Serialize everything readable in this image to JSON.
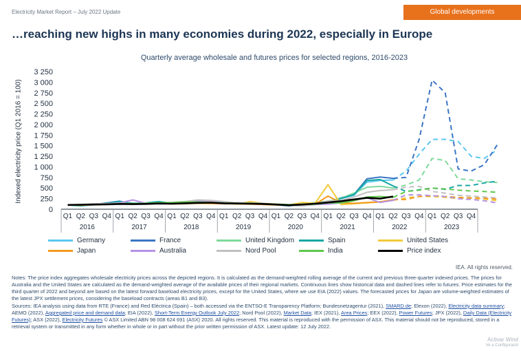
{
  "header": {
    "report": "Electricity Market Report – July 2022 Update",
    "tag": "Global developments"
  },
  "page_title": "…reaching new highs in many economies during 2022, especially in Europe",
  "chart_data": {
    "type": "line",
    "title": "Quarterly average wholesale and futures prices for selected regions, 2016-2023",
    "xlabel": "",
    "ylabel": "Indexed electricity price (Q1 2016 = 100)",
    "ylim": [
      0,
      3250
    ],
    "yticks": [
      0,
      250,
      500,
      750,
      1000,
      1250,
      1500,
      1750,
      2000,
      2250,
      2500,
      2750,
      3000,
      3250
    ],
    "ytick_labels": [
      "0",
      "250",
      "500",
      "750",
      "1 000",
      "1 250",
      "1 500",
      "1 750",
      "2 000",
      "2 250",
      "2 500",
      "2 750",
      "3 000",
      "3 250"
    ],
    "quarters": [
      "Q1",
      "Q2",
      "Q3",
      "Q4"
    ],
    "years": [
      "2016",
      "2017",
      "2018",
      "2019",
      "2020",
      "2021",
      "2022",
      "2023"
    ],
    "historical_through_index": 25,
    "series": [
      {
        "name": "Germany",
        "color": "#5bc7f0",
        "values": [
          100,
          85,
          100,
          130,
          185,
          120,
          125,
          160,
          140,
          150,
          175,
          195,
          145,
          150,
          130,
          125,
          105,
          85,
          105,
          130,
          170,
          250,
          330,
          640,
          680,
          690,
          900,
          1300,
          1650,
          1650,
          1600,
          1250,
          1200,
          1400
        ]
      },
      {
        "name": "France",
        "color": "#3b75c4",
        "values": [
          100,
          85,
          110,
          150,
          190,
          120,
          125,
          170,
          140,
          160,
          190,
          200,
          150,
          155,
          130,
          135,
          110,
          80,
          120,
          140,
          180,
          270,
          350,
          720,
          760,
          730,
          750,
          1650,
          3050,
          2750,
          950,
          900,
          1050,
          1520
        ]
      },
      {
        "name": "United Kingdom",
        "color": "#7fd99a",
        "values": [
          100,
          95,
          110,
          140,
          150,
          125,
          140,
          160,
          145,
          160,
          190,
          185,
          150,
          145,
          125,
          120,
          100,
          85,
          125,
          160,
          190,
          260,
          380,
          520,
          540,
          500,
          570,
          690,
          1200,
          1150,
          720,
          690,
          650,
          630
        ]
      },
      {
        "name": "Spain",
        "color": "#17a8a2",
        "values": [
          100,
          80,
          110,
          140,
          180,
          140,
          150,
          180,
          140,
          170,
          190,
          180,
          150,
          140,
          125,
          120,
          105,
          80,
          110,
          115,
          130,
          250,
          350,
          680,
          700,
          550,
          420,
          460,
          500,
          470,
          560,
          560,
          620,
          660
        ]
      },
      {
        "name": "United States",
        "color": "#f2c93a",
        "values": [
          100,
          110,
          130,
          130,
          140,
          130,
          140,
          150,
          150,
          140,
          160,
          180,
          160,
          120,
          180,
          140,
          120,
          100,
          160,
          140,
          580,
          110,
          130,
          150,
          170,
          210,
          270,
          300,
          300,
          280,
          250,
          260,
          240,
          200
        ]
      },
      {
        "name": "Japan",
        "color": "#f29a1d",
        "values": [
          100,
          95,
          105,
          115,
          130,
          120,
          125,
          135,
          125,
          130,
          140,
          135,
          130,
          125,
          120,
          110,
          100,
          95,
          100,
          115,
          310,
          150,
          140,
          160,
          175,
          225,
          230,
          300,
          320,
          300,
          280,
          270,
          260,
          240
        ]
      },
      {
        "name": "Australia",
        "color": "#b592e6",
        "values": [
          100,
          110,
          120,
          130,
          150,
          220,
          140,
          130,
          150,
          160,
          190,
          200,
          160,
          150,
          140,
          130,
          120,
          100,
          100,
          110,
          120,
          150,
          220,
          270,
          160,
          210,
          340,
          340,
          320,
          300,
          250,
          230,
          200,
          150
        ]
      },
      {
        "name": "Nord Pool",
        "color": "#c2bfbf",
        "values": [
          100,
          110,
          130,
          130,
          140,
          130,
          140,
          150,
          160,
          180,
          220,
          210,
          180,
          150,
          150,
          140,
          110,
          90,
          80,
          110,
          200,
          200,
          290,
          400,
          440,
          460,
          520,
          540,
          420,
          380,
          330,
          310,
          290,
          270
        ]
      },
      {
        "name": "India",
        "color": "#5dc74b",
        "values": [
          100,
          105,
          110,
          115,
          120,
          130,
          140,
          150,
          160,
          170,
          170,
          160,
          150,
          140,
          140,
          130,
          120,
          110,
          110,
          120,
          150,
          150,
          200,
          290,
          300,
          280,
          420,
          450,
          500,
          480,
          450,
          430,
          420,
          400
        ]
      },
      {
        "name": "Price index",
        "color": "#000000",
        "values": [
          100,
          105,
          110,
          115,
          125,
          120,
          125,
          135,
          130,
          140,
          150,
          155,
          140,
          135,
          130,
          125,
          110,
          95,
          110,
          130,
          160,
          190,
          230,
          270,
          250,
          300
        ]
      }
    ]
  },
  "copyright": "IEA. All rights reserved.",
  "notes": {
    "p1": "Notes: The price index aggregates wholesale electricity prices across the depicted regions. It is calculated as the demand-weighted rolling average of the current and previous three-quarter indexed prices. The prices for Australia and the United States are calculated as the demand-weighted average of the available prices of their regional markets. Continuous lines show historical data and dashed lines refer to futures. Price estimates for the third quarter of 2022 and beyond are based on the latest forward baseload electricity prices, except for the United States, where we use EIA (2022) values. The forecasted prices for Japan are volume-weighted estimates of the latest JPX settlement prices, considering the baseload contracts (areas B1 and B3).",
    "s1": "Sources: IEA analysis using data from RTE (France) and Red Eléctrica (Spain) – both accessed via the ENTSO-E Transparency Platform; Bundesnetzagentur (2021), ",
    "l1": "SMARD.de",
    "s2": "; Elexon (2022), ",
    "l2": "Electricity data summary",
    "s3": "; AEMO (2022), ",
    "l3": "Aggregated price and demand data",
    "s4": "; EIA (2022), ",
    "l4": "Short-Term Energy Outlook July 2022",
    "s5": "; Nord Pool (2022), ",
    "l5": "Market Data",
    "s6": "; IEX (2021), ",
    "l6": "Area Prices",
    "s7": "; EEX (2022), ",
    "l7": "Power Futures",
    "s8": "; JPX (2022), ",
    "l8": "Daily Data (Electricity Futures)",
    "s9": "; ASX (2022), ",
    "l9": "Electricity Futures",
    "s10": " © ASX Limited ABN 98 008 624 691 (ASX) 2020. All rights reserved. This material is reproduced with the permission of ASX. This material should not be reproduced, stored in a retrieval system or transmitted in any form whether in whole or in part without the prior written permission of ASX. Latest update: 12 July 2022."
  },
  "watermark": {
    "line1": "Activar Wind",
    "line2": "Ve a Configuració"
  }
}
